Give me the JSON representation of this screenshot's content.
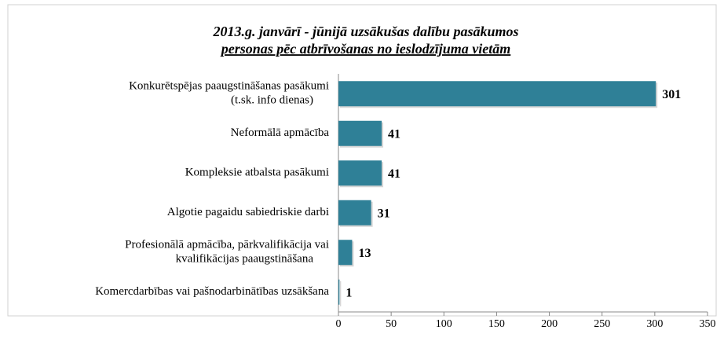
{
  "chart_data": {
    "type": "barh",
    "title": "2013.g. janvārī - jūnijā uzsākušas dalību pasākumos",
    "subtitle": "personas pēc atbrīvošanas no ieslodzījuma vietām",
    "categories": [
      "Konkurētspējas paaugstināšanas pasākumi\n(t.sk. info dienas)",
      "Neformālā apmācība",
      "Kompleksie atbalsta pasākumi",
      "Algotie pagaidu sabiedriskie darbi",
      "Profesionālā apmācība, pārkvalifikācija vai\nkvalifikācijas paaugstināšana",
      "Komercdarbības vai pašnodarbinātības uzsākšana"
    ],
    "values": [
      301,
      41,
      41,
      31,
      13,
      1
    ],
    "color": "#2f8097",
    "xlim": [
      0,
      350
    ],
    "xticks": [
      0,
      50,
      100,
      150,
      200,
      250,
      300,
      350
    ]
  }
}
